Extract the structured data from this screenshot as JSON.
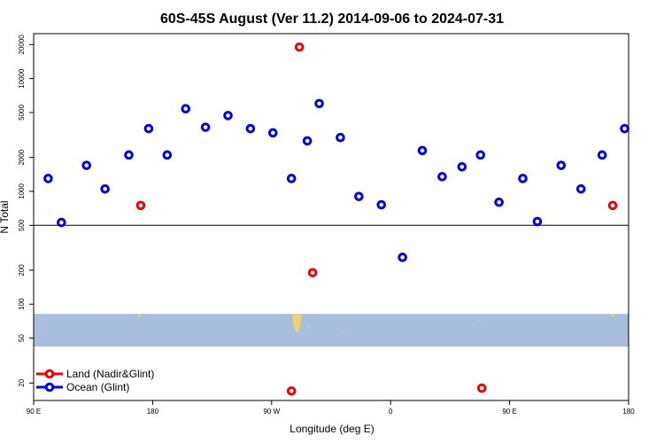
{
  "chart_data": {
    "type": "scatter",
    "title": "60S-45S August (Ver 11.2)   2014-09-06 to 2024-07-31",
    "xlabel": "Longitude (deg E)",
    "ylabel": "N Total",
    "x_ticks": [
      {
        "label": "90 E",
        "value": 90
      },
      {
        "label": "180",
        "value": 180
      },
      {
        "label": "90 W",
        "value": 270
      },
      {
        "label": "0",
        "value": 360
      },
      {
        "label": "90 E",
        "value": 450
      },
      {
        "label": "180",
        "value": 540
      }
    ],
    "xlim": [
      90,
      540
    ],
    "y_scale": "log",
    "ylim": [
      14,
      25000
    ],
    "y_ticks": [
      "20",
      "50",
      "100",
      "200",
      "500",
      "1000",
      "2000",
      "5000",
      "10000",
      "20000"
    ],
    "reference_line_y": 500,
    "ocean_band_y": [
      42,
      82
    ],
    "colors": {
      "land": "#ee0000",
      "ocean": "#0000dd",
      "band": "#a8bedc",
      "land_patch": "#f0d070"
    },
    "series": [
      {
        "name": "Land (Nadir&Glint)",
        "color": "#ee0000",
        "points": [
          {
            "x": 171,
            "y": 750
          },
          {
            "x": 291,
            "y": 19000
          },
          {
            "x": 301,
            "y": 190
          },
          {
            "x": 285,
            "y": 17
          },
          {
            "x": 429,
            "y": 18
          },
          {
            "x": 528,
            "y": 750
          }
        ]
      },
      {
        "name": "Ocean (Glint)",
        "color": "#0000dd",
        "points": [
          {
            "x": 101,
            "y": 1300
          },
          {
            "x": 111,
            "y": 530
          },
          {
            "x": 130,
            "y": 1700
          },
          {
            "x": 144,
            "y": 1050
          },
          {
            "x": 162,
            "y": 2100
          },
          {
            "x": 177,
            "y": 3600
          },
          {
            "x": 191,
            "y": 2100
          },
          {
            "x": 205,
            "y": 5400
          },
          {
            "x": 220,
            "y": 3700
          },
          {
            "x": 237,
            "y": 4700
          },
          {
            "x": 254,
            "y": 3600
          },
          {
            "x": 271,
            "y": 3300
          },
          {
            "x": 285,
            "y": 1300
          },
          {
            "x": 297,
            "y": 2800
          },
          {
            "x": 306,
            "y": 6000
          },
          {
            "x": 322,
            "y": 3000
          },
          {
            "x": 336,
            "y": 900
          },
          {
            "x": 353,
            "y": 760
          },
          {
            "x": 369,
            "y": 260
          },
          {
            "x": 384,
            "y": 2300
          },
          {
            "x": 399,
            "y": 1350
          },
          {
            "x": 414,
            "y": 1650
          },
          {
            "x": 428,
            "y": 2100
          },
          {
            "x": 442,
            "y": 800
          },
          {
            "x": 460,
            "y": 1300
          },
          {
            "x": 471,
            "y": 540
          },
          {
            "x": 489,
            "y": 1700
          },
          {
            "x": 504,
            "y": 1050
          },
          {
            "x": 520,
            "y": 2100
          },
          {
            "x": 537,
            "y": 3600
          }
        ]
      }
    ],
    "legend": {
      "position": "bottom-left"
    }
  }
}
